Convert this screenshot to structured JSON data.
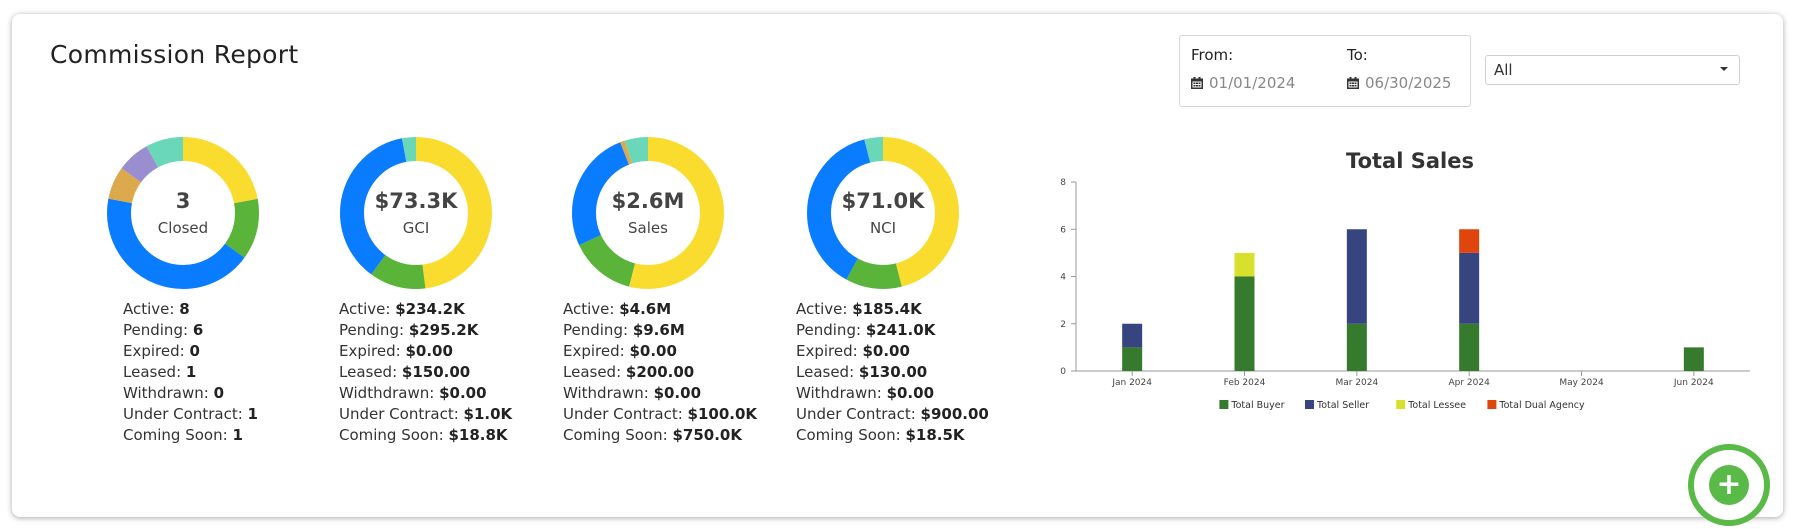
{
  "title": "Commission Report",
  "date_range": {
    "from_label": "From:",
    "from_value": "01/01/2024",
    "to_label": "To:",
    "to_value": "06/30/2025"
  },
  "filter": {
    "selected": "All"
  },
  "colors": {
    "yellow": "#f9dc2e",
    "green": "#5ab43a",
    "blue": "#0a7cff",
    "orange": "#dca94c",
    "purple": "#9b8ed0",
    "teal": "#6ad8b8",
    "buyer": "#367a2d",
    "seller": "#36457f",
    "lessee": "#d7e12d",
    "dual": "#e0450d"
  },
  "donuts": [
    {
      "value": "3",
      "label": "Closed",
      "segments": [
        {
          "color": "yellow",
          "fraction": 0.22
        },
        {
          "color": "green",
          "fraction": 0.13
        },
        {
          "color": "blue",
          "fraction": 0.43
        },
        {
          "color": "orange",
          "fraction": 0.07
        },
        {
          "color": "purple",
          "fraction": 0.07
        },
        {
          "color": "teal",
          "fraction": 0.08
        }
      ],
      "stats": [
        {
          "label": "Active:",
          "value": "8"
        },
        {
          "label": "Pending:",
          "value": "6"
        },
        {
          "label": "Expired:",
          "value": "0"
        },
        {
          "label": "Leased:",
          "value": "1"
        },
        {
          "label": "Withdrawn:",
          "value": "0"
        },
        {
          "label": "Under Contract:",
          "value": "1"
        },
        {
          "label": "Coming Soon:",
          "value": "1"
        }
      ]
    },
    {
      "value": "$73.3K",
      "label": "GCI",
      "segments": [
        {
          "color": "yellow",
          "fraction": 0.48
        },
        {
          "color": "green",
          "fraction": 0.12
        },
        {
          "color": "blue",
          "fraction": 0.37
        },
        {
          "color": "teal",
          "fraction": 0.03
        }
      ],
      "stats": [
        {
          "label": "Active:",
          "value": "$234.2K"
        },
        {
          "label": "Pending:",
          "value": "$295.2K"
        },
        {
          "label": "Expired:",
          "value": "$0.00"
        },
        {
          "label": "Leased:",
          "value": "$150.00"
        },
        {
          "label": "Widthdrawn:",
          "value": "$0.00"
        },
        {
          "label": "Under Contract:",
          "value": "$1.0K"
        },
        {
          "label": "Coming Soon:",
          "value": "$18.8K"
        }
      ]
    },
    {
      "value": "$2.6M",
      "label": "Sales",
      "segments": [
        {
          "color": "yellow",
          "fraction": 0.54
        },
        {
          "color": "green",
          "fraction": 0.14
        },
        {
          "color": "blue",
          "fraction": 0.26
        },
        {
          "color": "orange",
          "fraction": 0.01
        },
        {
          "color": "teal",
          "fraction": 0.05
        }
      ],
      "stats": [
        {
          "label": "Active:",
          "value": "$4.6M"
        },
        {
          "label": "Pending:",
          "value": "$9.6M"
        },
        {
          "label": "Expired:",
          "value": "$0.00"
        },
        {
          "label": "Leased:",
          "value": "$200.00"
        },
        {
          "label": "Withdrawn:",
          "value": "$0.00"
        },
        {
          "label": "Under Contract:",
          "value": "$100.0K"
        },
        {
          "label": "Coming Soon:",
          "value": "$750.0K"
        }
      ]
    },
    {
      "value": "$71.0K",
      "label": "NCI",
      "segments": [
        {
          "color": "yellow",
          "fraction": 0.46
        },
        {
          "color": "green",
          "fraction": 0.12
        },
        {
          "color": "blue",
          "fraction": 0.38
        },
        {
          "color": "teal",
          "fraction": 0.04
        }
      ],
      "stats": [
        {
          "label": "Active:",
          "value": "$185.4K"
        },
        {
          "label": "Pending:",
          "value": "$241.0K"
        },
        {
          "label": "Expired:",
          "value": "$0.00"
        },
        {
          "label": "Leased:",
          "value": "$130.00"
        },
        {
          "label": "Withdrawn:",
          "value": "$0.00"
        },
        {
          "label": "Under Contract:",
          "value": "$900.00"
        },
        {
          "label": "Coming Soon:",
          "value": "$18.5K"
        }
      ]
    }
  ],
  "chart_data": {
    "type": "bar",
    "stacked": true,
    "title": "Total Sales",
    "categories": [
      "Jan 2024",
      "Feb 2024",
      "Mar 2024",
      "Apr 2024",
      "May 2024",
      "Jun 2024"
    ],
    "series": [
      {
        "name": "Total Buyer",
        "color": "buyer",
        "values": [
          1,
          4,
          2,
          2,
          0,
          1
        ]
      },
      {
        "name": "Total Seller",
        "color": "seller",
        "values": [
          1,
          0,
          4,
          3,
          0,
          0
        ]
      },
      {
        "name": "Total Lessee",
        "color": "lessee",
        "values": [
          0,
          1,
          0,
          0,
          0,
          0
        ]
      },
      {
        "name": "Total Dual Agency",
        "color": "dual",
        "values": [
          0,
          0,
          0,
          1,
          0,
          0
        ]
      }
    ],
    "yticks": [
      "0",
      "2",
      "4",
      "6",
      "8"
    ],
    "ylim": [
      0,
      8
    ],
    "legend": "bottom",
    "grid": false
  },
  "fab": {
    "symbol": "+"
  }
}
